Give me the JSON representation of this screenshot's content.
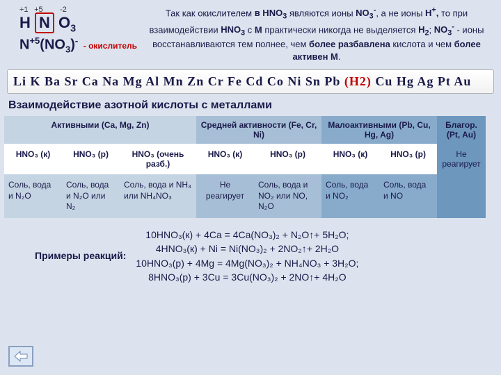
{
  "formula": {
    "ox1": "+1",
    "ox2": "+5",
    "ox3": "-2",
    "line1_h": "H",
    "line1_n": "N",
    "line1_o3": "O",
    "line2": "N",
    "line2_sup": "+5",
    "line2_rest": "(NO",
    "line2_sub": "3",
    "line2_end": ")",
    "line2_minus": "-",
    "oxidizer": "- окислитель"
  },
  "explain_html": "Так как окислителем <b>в HNO<sub>3</sub></b> являются ионы <b>NO<sub>3</sub><sup>-</sup></b>, а не ионы <b>H<sup>+</sup>,</b> то при взаимодействии <b>HNO<sub>3</sub></b> с <b>М</b> практически никогда не выделяется <b>H<sub>2</sub></b>; <b>NO<sub>3</sub><sup>-</sup></b> - ионы восстанавливаются тем полнее, чем <b>более разбавлена</b> кислота и чем <b>более активен М</b>.",
  "series_before": "Li K Ba Sr Ca Na Mg Al Mn Zn Cr Fe Cd Co Ni Sn Pb ",
  "series_h2": "(H2)",
  "series_after": " Cu Hg Ag Pt Au",
  "section_title": "Взаимодействие азотной кислоты с металлами",
  "headers": {
    "h1": "Активными (Ca, Mg, Zn)",
    "h2": "Средней активности (Fe, Cr, Ni)",
    "h3": "Малоактивными (Pb, Cu, Hg, Ag)",
    "h4": "Благор. (Pt, Au)"
  },
  "cols": {
    "c1": "HNO₃ (к)",
    "c2": "HNO₃ (р)",
    "c3": "HNO₃ (очень разб.)",
    "c4": "HNO₃ (к)",
    "c5": "HNO₃ (р)",
    "c6": "HNO₃ (к)",
    "c7": "HNO₃ (р)"
  },
  "cells": {
    "d1": "Соль, вода и N₂O",
    "d2": "Соль, вода и N₂O или N₂",
    "d3": "Соль, вода и NH₃ или NH₄NO₃",
    "d4": "Не реагирует",
    "d5": "Соль, вода и NO₂ или NO, N₂O",
    "d6": "Соль, вода и NO₂",
    "d7": "Соль, вода и NO",
    "d8": "Не реагирует"
  },
  "examples_label": "Примеры реакций:",
  "eq1": "10HNO₃(к) + 4Ca = 4Ca(NO₃)₂ + N₂O↑+ 5H₂O;",
  "eq2": "4HNO₃(к) + Ni = Ni(NO₃)₂ + 2NO₂↑+ 2H₂O",
  "eq3": "10HNO₃(р) + 4Mg = 4Mg(NO₃)₂ + NH₄NO₃ + 3H₂O;",
  "eq4": "8HNO₃(р) + 3Cu = 3Cu(NO₃)₂ + 2NO↑+ 4H₂O",
  "colors": {
    "bg": "#dde3ee",
    "accent_red": "#c00000",
    "text": "#1a1a4a",
    "h_bg_a": "#c5d4e3",
    "h_bg_b": "#a7bfd6",
    "h_bg_c": "#88abcb",
    "h_bg_d": "#6e97be"
  }
}
